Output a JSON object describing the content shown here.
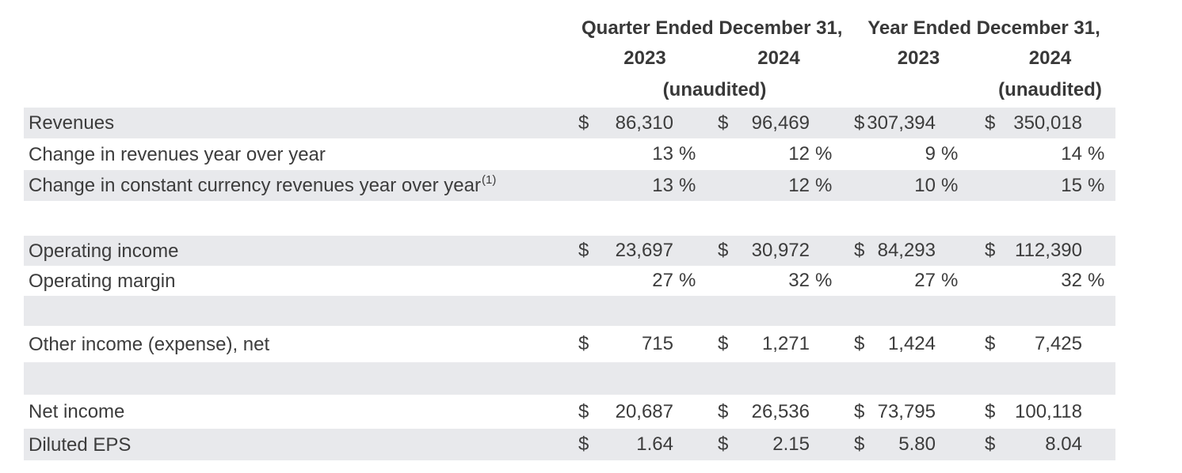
{
  "document": {
    "header": {
      "quarter_group_title": "Quarter Ended December 31,",
      "year_group_title": "Year Ended December 31,",
      "quarter_col_2023": "2023",
      "quarter_col_2024": "2024",
      "year_col_2023": "2023",
      "year_col_2024": "2024",
      "quarter_unaudited_note": "(unaudited)",
      "year_unaudited_note": "(unaudited)"
    },
    "rows": [
      {
        "label": "Revenues",
        "sup": "",
        "cells": [
          {
            "cur": "$",
            "num": "86,310",
            "sfx": ""
          },
          {
            "cur": "$",
            "num": "96,469",
            "sfx": ""
          },
          {
            "cur": "$",
            "num": "307,394",
            "sfx": ""
          },
          {
            "cur": "$",
            "num": "350,018",
            "sfx": ""
          }
        ]
      },
      {
        "label": "Change in revenues year over year",
        "sup": "",
        "cells": [
          {
            "cur": "",
            "num": "13",
            "sfx": "%"
          },
          {
            "cur": "",
            "num": "12",
            "sfx": "%"
          },
          {
            "cur": "",
            "num": "9",
            "sfx": "%"
          },
          {
            "cur": "",
            "num": "14",
            "sfx": "%"
          }
        ]
      },
      {
        "label": "Change in constant currency revenues year over year",
        "sup": "(1)",
        "cells": [
          {
            "cur": "",
            "num": "13",
            "sfx": "%"
          },
          {
            "cur": "",
            "num": "12",
            "sfx": "%"
          },
          {
            "cur": "",
            "num": "10",
            "sfx": "%"
          },
          {
            "cur": "",
            "num": "15",
            "sfx": "%"
          }
        ]
      },
      {
        "label": "Operating income",
        "sup": "",
        "cells": [
          {
            "cur": "$",
            "num": "23,697",
            "sfx": ""
          },
          {
            "cur": "$",
            "num": "30,972",
            "sfx": ""
          },
          {
            "cur": "$",
            "num": "84,293",
            "sfx": ""
          },
          {
            "cur": "$",
            "num": "112,390",
            "sfx": ""
          }
        ]
      },
      {
        "label": "Operating margin",
        "sup": "",
        "cells": [
          {
            "cur": "",
            "num": "27",
            "sfx": "%"
          },
          {
            "cur": "",
            "num": "32",
            "sfx": "%"
          },
          {
            "cur": "",
            "num": "27",
            "sfx": "%"
          },
          {
            "cur": "",
            "num": "32",
            "sfx": "%"
          }
        ]
      },
      {
        "label": "Other income (expense), net",
        "sup": "",
        "cells": [
          {
            "cur": "$",
            "num": "715",
            "sfx": ""
          },
          {
            "cur": "$",
            "num": "1,271",
            "sfx": ""
          },
          {
            "cur": "$",
            "num": "1,424",
            "sfx": ""
          },
          {
            "cur": "$",
            "num": "7,425",
            "sfx": ""
          }
        ]
      },
      {
        "label": "Net income",
        "sup": "",
        "cells": [
          {
            "cur": "$",
            "num": "20,687",
            "sfx": ""
          },
          {
            "cur": "$",
            "num": "26,536",
            "sfx": ""
          },
          {
            "cur": "$",
            "num": "73,795",
            "sfx": ""
          },
          {
            "cur": "$",
            "num": "100,118",
            "sfx": ""
          }
        ]
      },
      {
        "label": "Diluted EPS",
        "sup": "",
        "cells": [
          {
            "cur": "$",
            "num": "1.64",
            "sfx": ""
          },
          {
            "cur": "$",
            "num": "2.15",
            "sfx": ""
          },
          {
            "cur": "$",
            "num": "5.80",
            "sfx": ""
          },
          {
            "cur": "$",
            "num": "8.04",
            "sfx": ""
          }
        ]
      }
    ],
    "colors": {
      "row_shade": "#e8e9ec",
      "text": "#3c3c3c"
    }
  }
}
